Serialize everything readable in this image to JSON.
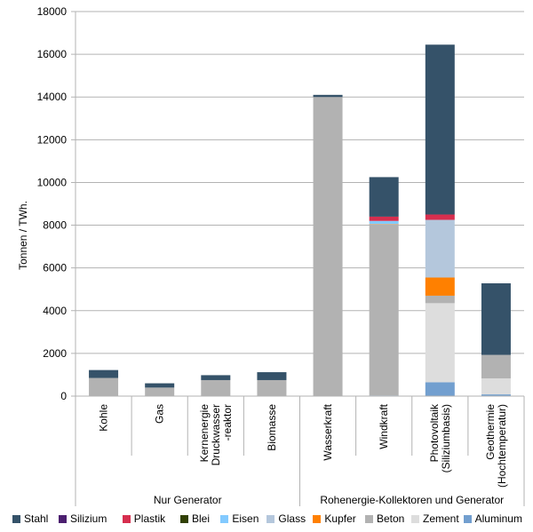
{
  "chart_data": {
    "type": "bar",
    "stacked": true,
    "title": "",
    "xlabel": "",
    "ylabel": "Tonnen / TWh.",
    "ylim": [
      0,
      18000
    ],
    "yticks": [
      0,
      2000,
      4000,
      6000,
      8000,
      10000,
      12000,
      14000,
      16000,
      18000
    ],
    "grid": true,
    "legend_position": "bottom",
    "categories": [
      "Kohle",
      "Gas",
      "Kernenergie Druckwasser -reaktor",
      "Biomasse",
      "Wasserkraft",
      "Windkraft",
      "Photovoltaik (Siliziumbasis)",
      "Geothermie (Hochtemperatur)"
    ],
    "groups": [
      {
        "label": "Nur Generator",
        "count": 4
      },
      {
        "label": "Rohenergie-Kollektoren und Generator",
        "count": 4
      }
    ],
    "series": [
      {
        "name": "Aluminum",
        "color": "#729fcf",
        "values": [
          0,
          0,
          0,
          0,
          0,
          30,
          650,
          80
        ]
      },
      {
        "name": "Zement",
        "color": "#dddddd",
        "values": [
          0,
          0,
          0,
          0,
          0,
          0,
          3700,
          750
        ]
      },
      {
        "name": "Beton",
        "color": "#b2b2b2",
        "values": [
          850,
          400,
          750,
          750,
          14000,
          8000,
          350,
          1100
        ]
      },
      {
        "name": "Kupfer",
        "color": "#ff8000",
        "values": [
          0,
          0,
          0,
          0,
          0,
          20,
          850,
          0
        ]
      },
      {
        "name": "Glass",
        "color": "#b4c7dc",
        "values": [
          0,
          0,
          0,
          0,
          0,
          0,
          2700,
          0
        ]
      },
      {
        "name": "Eisen",
        "color": "#83caff",
        "values": [
          0,
          0,
          0,
          0,
          0,
          150,
          0,
          0
        ]
      },
      {
        "name": "Blei",
        "color": "#314004",
        "values": [
          0,
          0,
          0,
          0,
          0,
          0,
          0,
          0
        ]
      },
      {
        "name": "Plastik",
        "color": "#d62e4e",
        "values": [
          0,
          0,
          0,
          0,
          0,
          200,
          250,
          0
        ]
      },
      {
        "name": "Silizium",
        "color": "#4b1f6f",
        "values": [
          0,
          0,
          0,
          0,
          0,
          0,
          0,
          0
        ]
      },
      {
        "name": "Stahl",
        "color": "#355269",
        "values": [
          370,
          200,
          230,
          370,
          100,
          1850,
          7950,
          3350
        ]
      }
    ],
    "legend_order": [
      "Stahl",
      "Silizium",
      "Plastik",
      "Blei",
      "Eisen",
      "Glass",
      "Kupfer",
      "Beton",
      "Zement",
      "Aluminum"
    ]
  }
}
